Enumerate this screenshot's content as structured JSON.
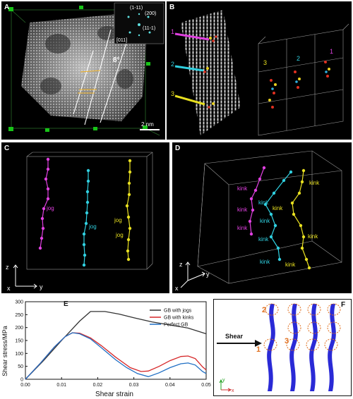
{
  "panels": {
    "A": {
      "label": "A",
      "angle": "8°",
      "scale_bar": "2 nm",
      "fft_labels": {
        "a": "(1-11)",
        "b": "(200)",
        "c": "(11-1)",
        "d": "[011]"
      }
    },
    "B": {
      "label": "B",
      "markers": [
        "1",
        "2",
        "3"
      ],
      "right_markers": [
        "1",
        "2",
        "3"
      ]
    },
    "C": {
      "label": "C",
      "jog_labels": [
        "jog",
        "jog",
        "jog",
        "jog"
      ],
      "axes": {
        "z": "z",
        "x": "x",
        "y": "y"
      }
    },
    "D": {
      "label": "D",
      "kink_labels": [
        "kink",
        "kink",
        "kink",
        "kink",
        "kink",
        "kink",
        "kink",
        "kink",
        "kink",
        "kink",
        "kink"
      ],
      "axes": {
        "z": "z",
        "x": "x",
        "y": "y"
      }
    },
    "E": {
      "label": "E"
    },
    "F": {
      "label": "F",
      "shear": "Shear",
      "markers": [
        "1",
        "2",
        "3"
      ],
      "axes": {
        "y": "y",
        "x": "x"
      }
    }
  },
  "chart_data": {
    "type": "line",
    "xlabel": "Shear strain",
    "ylabel": "Shear stress/MPa",
    "xlim": [
      0,
      0.05
    ],
    "ylim": [
      0,
      300
    ],
    "xticks": [
      "0.00",
      "0.01",
      "0.02",
      "0.03",
      "0.04",
      "0.05"
    ],
    "yticks": [
      "0",
      "50",
      "100",
      "150",
      "200",
      "250",
      "300"
    ],
    "legend_position": "top-right",
    "series": [
      {
        "name": "GB with jogs",
        "color": "#333333",
        "x": [
          0,
          0.005,
          0.01,
          0.015,
          0.018,
          0.022,
          0.026,
          0.03,
          0.035,
          0.04,
          0.045,
          0.05
        ],
        "y": [
          0,
          72,
          150,
          225,
          262,
          262,
          252,
          238,
          222,
          210,
          198,
          176
        ]
      },
      {
        "name": "GB with kinks",
        "color": "#d62728",
        "x": [
          0,
          0.004,
          0.008,
          0.011,
          0.013,
          0.015,
          0.018,
          0.021,
          0.025,
          0.029,
          0.032,
          0.034,
          0.037,
          0.04,
          0.043,
          0.045,
          0.047,
          0.049,
          0.05
        ],
        "y": [
          0,
          60,
          125,
          165,
          180,
          178,
          160,
          130,
          85,
          45,
          30,
          32,
          50,
          72,
          88,
          90,
          80,
          48,
          36
        ]
      },
      {
        "name": "Perfect GB",
        "color": "#1f6fc4",
        "x": [
          0,
          0.004,
          0.008,
          0.011,
          0.013,
          0.015,
          0.018,
          0.021,
          0.025,
          0.028,
          0.031,
          0.034,
          0.037,
          0.04,
          0.043,
          0.045,
          0.047,
          0.049,
          0.05
        ],
        "y": [
          0,
          60,
          125,
          165,
          180,
          176,
          156,
          122,
          75,
          45,
          22,
          10,
          25,
          45,
          60,
          63,
          55,
          30,
          22
        ]
      }
    ]
  }
}
